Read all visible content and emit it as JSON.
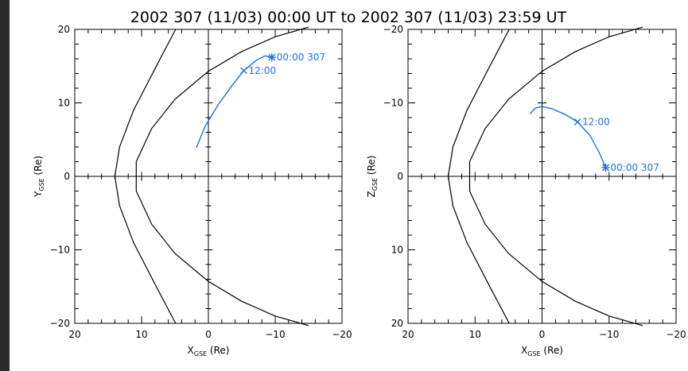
{
  "title": "2002 307 (11/03) 00:00 UT to 2002 307 (11/03) 23:59 UT",
  "colors": {
    "orbit": "#1a73e8",
    "boundary": "#000000"
  },
  "chart_data": [
    {
      "type": "line",
      "panel": "left",
      "xlabel": "X",
      "xlabel_sub": "GSE",
      "xlabel_unit": " (Re)",
      "ylabel": "Y",
      "ylabel_sub": "GSE",
      "ylabel_unit": " (Re)",
      "xlim": [
        20,
        -20
      ],
      "ylim": [
        20,
        -20
      ],
      "xticks": [
        20,
        10,
        0,
        -10,
        -20
      ],
      "xtick_labels": [
        "20",
        "10",
        "0",
        "−10",
        "−20"
      ],
      "yticks": [
        -20,
        -10,
        0,
        10,
        20
      ],
      "ytick_labels": [
        "−20",
        "−10",
        "0",
        "10",
        "20"
      ],
      "grid": false,
      "series": [
        {
          "role": "boundary",
          "x": [
            4.9,
            7.8,
            11.2,
            13.3,
            14.0,
            13.3,
            11.2,
            7.8,
            4.9
          ],
          "y": [
            -20,
            -15,
            -9,
            -4,
            0,
            4,
            9,
            15,
            20
          ]
        },
        {
          "role": "boundary",
          "x": [
            -15,
            -10,
            -5,
            0,
            5,
            8.5,
            10.8,
            10.8,
            8.5,
            5,
            0,
            -5,
            -10,
            -15
          ],
          "y": [
            -20.3,
            -19,
            -17,
            -14.3,
            -10.5,
            -6.5,
            -2,
            2,
            6.5,
            10.5,
            14.3,
            17,
            19,
            20.3
          ]
        },
        {
          "role": "orbit",
          "x": [
            1.8,
            0.5,
            -1.5,
            -3.5,
            -5.3,
            -7.2,
            -8.5,
            -9.5
          ],
          "y": [
            3.9,
            6.8,
            9.8,
            12.3,
            14.4,
            15.8,
            16.4,
            16.2
          ]
        }
      ],
      "annotations": [
        {
          "text": "12:00",
          "x": -5.3,
          "y": 14.4,
          "marker": "x"
        },
        {
          "text": "00:00 307",
          "x": -9.5,
          "y": 16.2,
          "marker": "*"
        }
      ]
    },
    {
      "type": "line",
      "panel": "right",
      "xlabel": "X",
      "xlabel_sub": "GSE",
      "xlabel_unit": " (Re)",
      "ylabel": "Z",
      "ylabel_sub": "GSE",
      "ylabel_unit": " (Re)",
      "xlim": [
        20,
        -20
      ],
      "ylim": [
        -20,
        20
      ],
      "xticks": [
        20,
        10,
        0,
        -10,
        -20
      ],
      "xtick_labels": [
        "20",
        "10",
        "0",
        "−10",
        "−20"
      ],
      "yticks": [
        20,
        10,
        0,
        -10,
        -20
      ],
      "ytick_labels": [
        "20",
        "10",
        "0",
        "−10",
        "−20"
      ],
      "grid": false,
      "series": [
        {
          "role": "boundary",
          "x": [
            4.9,
            7.8,
            11.2,
            13.3,
            14.0,
            13.3,
            11.2,
            7.8,
            4.9
          ],
          "y": [
            20,
            15,
            9,
            4,
            0,
            -4,
            -9,
            -15,
            -20
          ]
        },
        {
          "role": "boundary",
          "x": [
            -15,
            -10,
            -5,
            0,
            5,
            8.5,
            10.8,
            10.8,
            8.5,
            5,
            0,
            -5,
            -10,
            -15
          ],
          "y": [
            20.3,
            19,
            17,
            14.3,
            10.5,
            6.5,
            2,
            -2,
            -6.5,
            -10.5,
            -14.3,
            -17,
            -19,
            -20.3
          ]
        },
        {
          "role": "orbit",
          "x": [
            1.8,
            1.0,
            0,
            -1.5,
            -3.5,
            -5.3,
            -7.2,
            -8.5,
            -9.5
          ],
          "y": [
            -8.5,
            -9.3,
            -9.5,
            -9.2,
            -8.4,
            -7.4,
            -5.5,
            -3.3,
            -1.2
          ]
        }
      ],
      "annotations": [
        {
          "text": "12:00",
          "x": -5.3,
          "y": -7.4,
          "marker": "x"
        },
        {
          "text": "00:00 307",
          "x": -9.5,
          "y": -1.2,
          "marker": "*"
        }
      ]
    }
  ]
}
